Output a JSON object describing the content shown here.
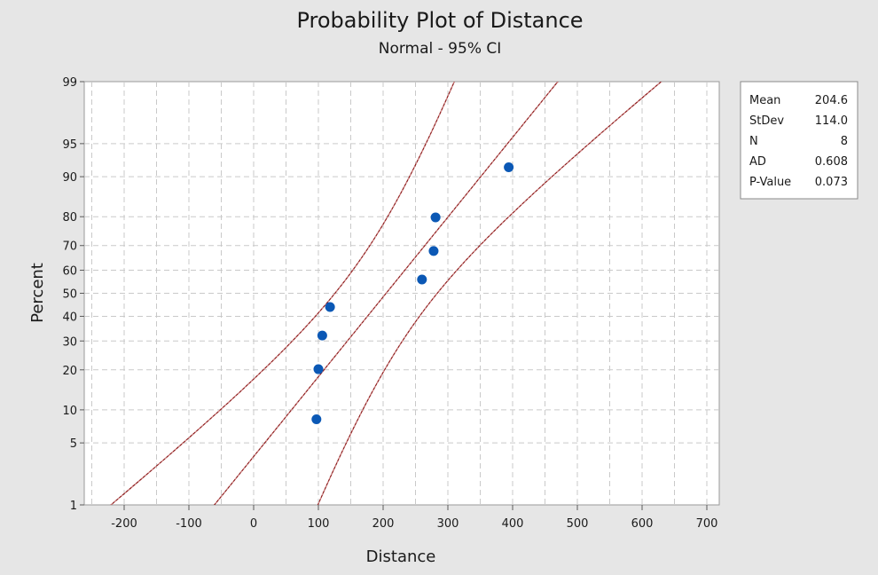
{
  "chart_data": {
    "type": "scatter",
    "title": "Probability Plot of Distance",
    "subtitle": "Normal - 95% CI",
    "xlabel": "Distance",
    "ylabel": "Percent",
    "xlim": [
      -260,
      710
    ],
    "x_ticks": [
      -200,
      -100,
      0,
      100,
      200,
      300,
      400,
      500,
      600,
      700
    ],
    "y_ticks": [
      1,
      5,
      10,
      20,
      30,
      40,
      50,
      60,
      70,
      80,
      90,
      95,
      99
    ],
    "y_scale": "normal-probability",
    "grid": true,
    "fit": {
      "mean": 204.6,
      "stdev": 114.0
    },
    "confidence_band": "95%",
    "points": [
      {
        "x": 97,
        "y": 8.3
      },
      {
        "x": 100,
        "y": 20.2
      },
      {
        "x": 106,
        "y": 32.1
      },
      {
        "x": 118,
        "y": 44.0
      },
      {
        "x": 260,
        "y": 56.0
      },
      {
        "x": 278,
        "y": 67.9
      },
      {
        "x": 281,
        "y": 79.8
      },
      {
        "x": 394,
        "y": 91.7
      }
    ],
    "legend_position": "right"
  },
  "stats": [
    {
      "label": "Mean",
      "value": "204.6"
    },
    {
      "label": "StDev",
      "value": "114.0"
    },
    {
      "label": "N",
      "value": "8"
    },
    {
      "label": "AD",
      "value": "0.608"
    },
    {
      "label": "P-Value",
      "value": "0.073"
    }
  ],
  "colors": {
    "point": "#0b58b5",
    "fit_line": "#8b1a1a",
    "background": "#e6e6e6"
  }
}
